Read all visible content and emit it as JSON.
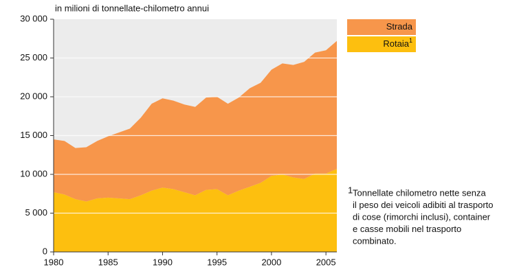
{
  "chart_data": {
    "type": "stacked_area",
    "unit_label": "in milioni di tonnellate-chilometro annui",
    "x": [
      1980,
      1981,
      1982,
      1983,
      1984,
      1985,
      1986,
      1987,
      1988,
      1989,
      1990,
      1991,
      1992,
      1993,
      1994,
      1995,
      1996,
      1997,
      1998,
      1999,
      2000,
      2001,
      2002,
      2003,
      2004,
      2005,
      2006
    ],
    "series": [
      {
        "name": "Strada",
        "color": "#f7964b",
        "values": [
          6800,
          6900,
          6600,
          7000,
          7400,
          7900,
          8500,
          9100,
          10000,
          11200,
          11500,
          11400,
          11300,
          11400,
          11900,
          11900,
          11800,
          12000,
          12700,
          12900,
          13700,
          14300,
          14500,
          15100,
          15600,
          15900,
          16500
        ]
      },
      {
        "name": "Rotaia",
        "color": "#fdbf0f",
        "values": [
          7700,
          7400,
          6800,
          6500,
          6900,
          7000,
          6900,
          6800,
          7300,
          7900,
          8300,
          8100,
          7700,
          7300,
          8000,
          8100,
          7300,
          7900,
          8400,
          8900,
          9800,
          10000,
          9600,
          9400,
          10100,
          10100,
          10700
        ]
      }
    ],
    "xlim": [
      1980,
      2006
    ],
    "xticks": [
      1980,
      1985,
      1990,
      1995,
      2000,
      2005
    ],
    "ylim": [
      0,
      30000
    ],
    "yticks": [
      0,
      {
        "value": 5000,
        "label": "5 000"
      },
      {
        "value": 10000,
        "label": "10 000"
      },
      {
        "value": 15000,
        "label": "15 000"
      },
      {
        "value": 20000,
        "label": "20 000"
      },
      {
        "value": 25000,
        "label": "25 000"
      },
      {
        "value": 30000,
        "label": "30 000"
      }
    ],
    "grid": true,
    "footnote": {
      "marker": "1",
      "lines": [
        "Tonnellate chilometro nette senza",
        "il peso dei veicoli adibiti al trasporto",
        "di cose (rimorchi inclusi), container",
        "e casse mobili nel trasporto",
        "combinato."
      ]
    }
  }
}
